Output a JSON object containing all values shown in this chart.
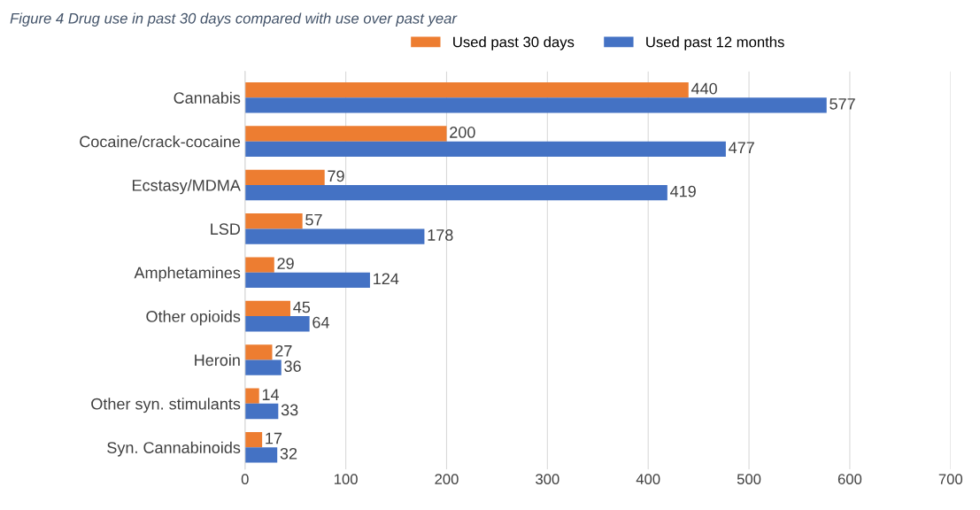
{
  "chart_data": {
    "type": "bar",
    "orientation": "horizontal",
    "title": "Figure 4 Drug use in past 30 days compared with use over past year",
    "categories": [
      "Cannabis",
      "Cocaine/crack-cocaine",
      "Ecstasy/MDMA",
      "LSD",
      "Amphetamines",
      "Other opioids",
      "Heroin",
      "Other syn. stimulants",
      "Syn. Cannabinoids"
    ],
    "series": [
      {
        "name": "Used past 30 days",
        "color": "#ed7d31",
        "values": [
          440,
          200,
          79,
          57,
          29,
          45,
          27,
          14,
          17
        ]
      },
      {
        "name": "Used past 12 months",
        "color": "#4472c4",
        "values": [
          577,
          477,
          419,
          178,
          124,
          64,
          36,
          33,
          32
        ]
      }
    ],
    "xlim": [
      0,
      700
    ],
    "xticks": [
      0,
      100,
      200,
      300,
      400,
      500,
      600,
      700
    ],
    "grid": "x",
    "legend": "top",
    "data_labels": true
  }
}
